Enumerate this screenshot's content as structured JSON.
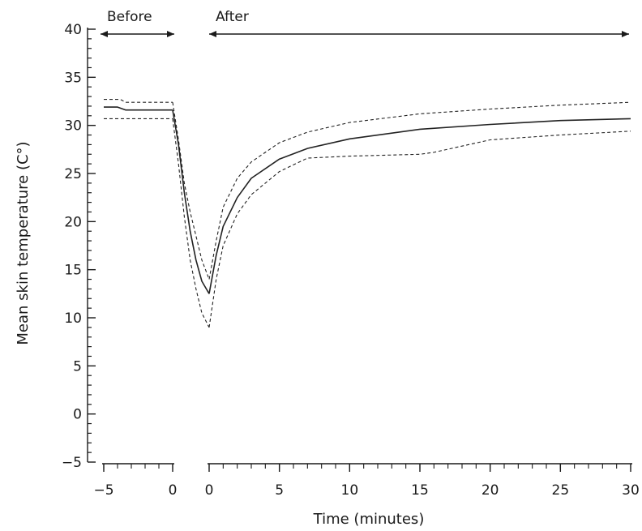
{
  "chart_data": {
    "type": "line",
    "title": "",
    "xlabel": "Time (minutes)",
    "ylabel": "Mean skin temperature (C°)",
    "ylim": [
      -5,
      40
    ],
    "yticks": [
      "40",
      "35",
      "30",
      "25",
      "20",
      "15",
      "10",
      "5",
      "0",
      "−5"
    ],
    "periods": [
      {
        "label": "Before",
        "range": [
          -5,
          0
        ]
      },
      {
        "label": "After",
        "range": [
          0,
          30
        ]
      }
    ],
    "before": {
      "xticks": [
        "−5",
        "0"
      ],
      "xlim": [
        -5,
        0
      ],
      "series": [
        {
          "style": "solid",
          "x": [
            -5,
            -4,
            -3.4,
            -2,
            -1,
            0
          ],
          "y": [
            31.9,
            31.9,
            31.6,
            31.6,
            31.6,
            31.6
          ]
        },
        {
          "style": "dashed",
          "x": [
            -5,
            -3.8,
            -3.4,
            -2,
            -1,
            0
          ],
          "y": [
            32.7,
            32.7,
            32.4,
            32.4,
            32.4,
            32.4
          ]
        },
        {
          "style": "dashed",
          "x": [
            -5,
            -3.8,
            -3.4,
            -2,
            -1,
            0
          ],
          "y": [
            30.7,
            30.7,
            30.7,
            30.7,
            30.7,
            30.7
          ]
        }
      ],
      "drop": [
        {
          "style": "solid",
          "x": [
            0,
            0.4,
            0.8,
            1.2,
            1.6,
            2.0,
            2.5
          ],
          "y": [
            31.6,
            28,
            23,
            19,
            16,
            13.8,
            12.5
          ]
        },
        {
          "style": "dashed",
          "x": [
            0,
            0.4,
            0.8,
            1.2,
            1.6,
            2.0,
            2.5
          ],
          "y": [
            32.4,
            28.5,
            24,
            21,
            18.5,
            16,
            14
          ]
        },
        {
          "style": "dashed",
          "x": [
            0,
            0.4,
            0.8,
            1.2,
            1.6,
            2.0,
            2.5
          ],
          "y": [
            30.7,
            26,
            20.5,
            16,
            13,
            10.5,
            9
          ]
        }
      ]
    },
    "after": {
      "xticks": [
        "0",
        "5",
        "10",
        "15",
        "20",
        "25",
        "30"
      ],
      "xlim": [
        0,
        30
      ],
      "series": [
        {
          "style": "solid",
          "x": [
            0,
            0.5,
            1,
            2,
            3,
            5,
            7,
            10,
            15,
            20,
            25,
            30
          ],
          "y": [
            12.5,
            16.5,
            19.5,
            22.5,
            24.5,
            26.5,
            27.6,
            28.6,
            29.6,
            30.1,
            30.5,
            30.7
          ]
        },
        {
          "style": "dashed",
          "x": [
            0,
            0.5,
            1,
            2,
            3,
            5,
            7,
            10,
            15,
            20,
            25,
            30
          ],
          "y": [
            14,
            18,
            21.5,
            24.5,
            26.2,
            28.2,
            29.3,
            30.3,
            31.2,
            31.7,
            32.1,
            32.4
          ]
        },
        {
          "style": "dashed",
          "x": [
            0,
            0.5,
            1,
            2,
            3,
            5,
            7,
            10,
            15,
            16,
            20,
            25,
            30
          ],
          "y": [
            9,
            14,
            17.5,
            20.8,
            22.8,
            25.2,
            26.6,
            26.8,
            27.0,
            27.2,
            28.5,
            29.0,
            29.4
          ]
        }
      ]
    },
    "grid": false,
    "legend": "none"
  }
}
